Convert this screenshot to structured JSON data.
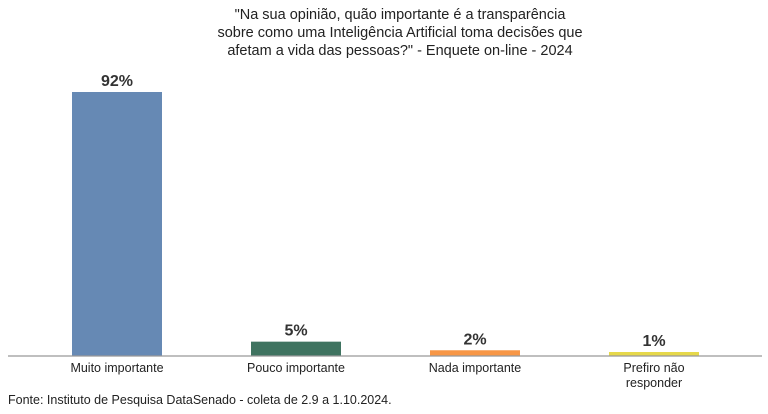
{
  "chart_data": {
    "type": "bar",
    "title_lines": [
      "\"Na sua opinião, quão importante é a transparência",
      "sobre como uma Inteligência Artificial toma decisões que",
      "afetam a vida das pessoas?\" - Enquete on-line - 2024"
    ],
    "categories": [
      [
        "Muito importante"
      ],
      [
        "Pouco importante"
      ],
      [
        "Nada importante"
      ],
      [
        "Prefiro não",
        "responder"
      ]
    ],
    "values": [
      92,
      5,
      2,
      1
    ],
    "data_labels": [
      "92%",
      "5%",
      "2%",
      "1%"
    ],
    "colors": [
      "#6689B4",
      "#3F7360",
      "#F79646",
      "#E6D84A"
    ],
    "ylim": [
      0,
      100
    ],
    "grid": false,
    "xlabel": "",
    "ylabel": ""
  },
  "source": "Fonte: Instituto de Pesquisa DataSenado - coleta de 2.9 a 1.10.2024."
}
